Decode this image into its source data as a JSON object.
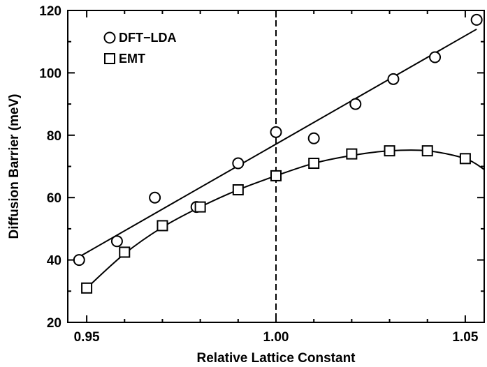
{
  "chart_data": {
    "type": "scatter",
    "title": "",
    "xlabel": "Relative Lattice Constant",
    "ylabel": "Diffusion Barrier (meV)",
    "xlim": [
      0.945,
      1.055
    ],
    "ylim": [
      20,
      120
    ],
    "xticks": [
      0.95,
      1.0,
      1.05
    ],
    "xtick_labels": [
      "0.95",
      "1.00",
      "1.05"
    ],
    "yticks": [
      20,
      40,
      60,
      80,
      100,
      120
    ],
    "ytick_labels": [
      "20",
      "40",
      "60",
      "80",
      "100",
      "120"
    ],
    "grid": false,
    "legend_position": "top-left",
    "reference_line": {
      "x": 1.0,
      "style": "dashed"
    },
    "series": [
      {
        "name": "DFT−LDA",
        "marker": "circle",
        "x": [
          0.948,
          0.958,
          0.968,
          0.979,
          0.99,
          1.0,
          1.01,
          1.021,
          1.031,
          1.042,
          1.053
        ],
        "y": [
          40,
          46,
          60,
          57,
          71,
          81,
          79,
          90,
          98,
          105,
          117
        ],
        "fit": {
          "type": "linear",
          "x": [
            0.948,
            1.053
          ],
          "y": [
            41,
            114
          ]
        }
      },
      {
        "name": "EMT",
        "marker": "square",
        "x": [
          0.95,
          0.96,
          0.97,
          0.98,
          0.99,
          1.0,
          1.01,
          1.02,
          1.03,
          1.04,
          1.05
        ],
        "y": [
          31,
          42.5,
          51,
          57,
          62.5,
          67,
          71,
          74,
          75,
          75,
          72.5
        ],
        "fit": {
          "type": "smooth",
          "x": [
            0.95,
            0.96,
            0.97,
            0.98,
            0.99,
            1.0,
            1.01,
            1.02,
            1.03,
            1.04,
            1.05,
            1.055
          ],
          "y": [
            31,
            42,
            50.5,
            57,
            62.5,
            67,
            71,
            73.5,
            75,
            75,
            72.5,
            69
          ]
        }
      }
    ]
  }
}
